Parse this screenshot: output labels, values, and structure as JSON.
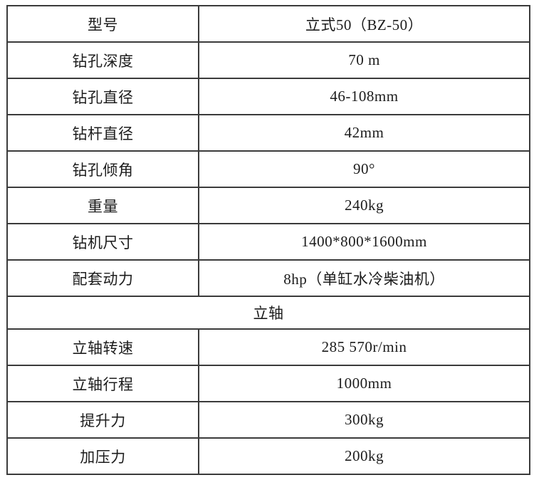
{
  "spec_table": {
    "section_header": "立轴",
    "rows": [
      {
        "label": "型号",
        "value": "立式50（BZ-50）"
      },
      {
        "label": "钻孔深度",
        "value": "70 m"
      },
      {
        "label": "钻孔直径",
        "value": "46-108mm"
      },
      {
        "label": "钻杆直径",
        "value": "42mm"
      },
      {
        "label": "钻孔倾角",
        "value": "90°"
      },
      {
        "label": "重量",
        "value": "240kg"
      },
      {
        "label": "钻机尺寸",
        "value": "1400*800*1600mm"
      },
      {
        "label": "配套动力",
        "value": "8hp（单缸水冷柴油机）"
      },
      {
        "label": "立轴转速",
        "value": "285 570r/min"
      },
      {
        "label": "立轴行程",
        "value": "1000mm"
      },
      {
        "label": "提升力",
        "value": "300kg"
      },
      {
        "label": "加压力",
        "value": "200kg"
      }
    ]
  },
  "colors": {
    "border": "#3b3b3b",
    "text": "#1c1c1c",
    "background": "#ffffff"
  }
}
